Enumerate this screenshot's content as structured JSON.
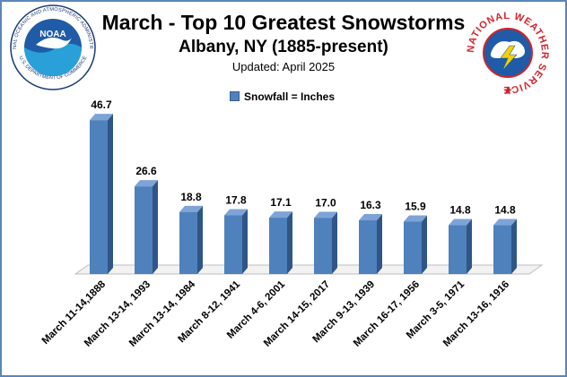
{
  "title": "March - Top 10 Greatest Snowstorms",
  "subtitle": "Albany, NY (1885-present)",
  "updated": "Updated: April 2025",
  "noaa_logo": {
    "wordmark": "NOAA",
    "ring_text": "NATIONAL OCEANIC AND ATMOSPHERIC ADMINISTRATION",
    "bottom_text": "U.S. DEPARTMENT OF COMMERCE"
  },
  "nws_logo": {
    "ring_text": "NATIONAL WEATHER SERVICE"
  },
  "colors": {
    "bar_front": "#4f81bd",
    "bar_side": "#2f5687",
    "bar_top": "#7ea3d6",
    "border": "#5b86b8"
  },
  "chart_data": {
    "type": "bar",
    "legend": "Snowfall = Inches",
    "legend_position": "top-center",
    "grid": false,
    "categories": [
      "March 11-14,1888",
      "March 13-14, 1993",
      "March 13-14, 1984",
      "March 8-12, 1941",
      "March 4-6, 2001",
      "March 14-15, 2017",
      "March 9-13, 1939",
      "March 16-17, 1956",
      "March 3-5, 1971",
      "March 13-16, 1916"
    ],
    "series": [
      {
        "name": "Snowfall = Inches",
        "values": [
          46.7,
          26.6,
          18.8,
          17.8,
          17.1,
          17.0,
          16.3,
          15.9,
          14.8,
          14.8
        ],
        "labels": [
          "46.7",
          "26.6",
          "18.8",
          "17.8",
          "17.1",
          "17.0",
          "16.3",
          "15.9",
          "14.8",
          "14.8"
        ]
      }
    ],
    "ylim": [
      0,
      50
    ]
  }
}
